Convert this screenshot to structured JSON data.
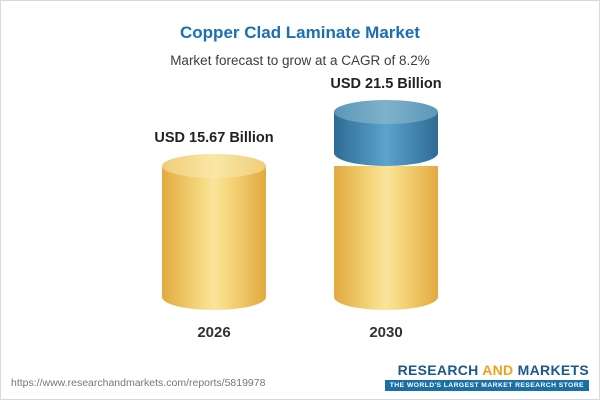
{
  "header": {
    "title": "Copper Clad Laminate Market",
    "subtitle": "Market forecast to grow at a CAGR of 8.2%"
  },
  "chart_data": {
    "type": "bar",
    "title": "Copper Clad Laminate Market",
    "subtitle": "Market forecast to grow at a CAGR of 8.2%",
    "unit": "USD Billion",
    "cagr_percent": 8.2,
    "categories": [
      "2026",
      "2030"
    ],
    "values": [
      15.67,
      21.5
    ],
    "series": [
      {
        "name": "base-value",
        "values": [
          15.67,
          15.67
        ],
        "color": "#F2CE68"
      },
      {
        "name": "forecast-growth",
        "values": [
          0,
          5.83
        ],
        "color": "#4A87B0"
      }
    ],
    "bars": [
      {
        "year": "2026",
        "label": "USD 15.67 Billion",
        "total": 15.67,
        "base": 15.67,
        "growth": 0
      },
      {
        "year": "2030",
        "label": "USD 21.5 Billion",
        "total": 21.5,
        "base": 15.67,
        "growth": 5.83
      }
    ],
    "legend": "none",
    "grid": false
  },
  "footer": {
    "url": "https://www.researchandmarkets.com/reports/5819978",
    "logo": {
      "research": "RESEARCH",
      "and": "AND",
      "markets": "MARKETS",
      "tagline": "THE WORLD'S LARGEST MARKET RESEARCH STORE"
    }
  },
  "colors": {
    "title_blue": "#1a6fb5",
    "bar_yellow": "#F2CE68",
    "bar_blue": "#4A87B0"
  }
}
